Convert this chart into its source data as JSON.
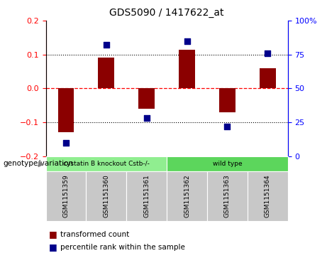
{
  "title": "GDS5090 / 1417622_at",
  "samples": [
    "GSM1151359",
    "GSM1151360",
    "GSM1151361",
    "GSM1151362",
    "GSM1151363",
    "GSM1151364"
  ],
  "transformed_counts": [
    -0.13,
    0.09,
    -0.06,
    0.115,
    -0.07,
    0.06
  ],
  "percentile_ranks": [
    10,
    82,
    28,
    85,
    22,
    76
  ],
  "groups": [
    "cystatin B knockout Cstb-/-",
    "cystatin B knockout Cstb-/-",
    "cystatin B knockout Cstb-/-",
    "wild type",
    "wild type",
    "wild type"
  ],
  "bar_color": "#8B0000",
  "dot_color": "#00008B",
  "ylim_left": [
    -0.2,
    0.2
  ],
  "ylim_right": [
    0,
    100
  ],
  "yticks_left": [
    -0.2,
    -0.1,
    0.0,
    0.1,
    0.2
  ],
  "yticks_right": [
    0,
    25,
    50,
    75,
    100
  ],
  "background_color": "#ffffff",
  "plot_bg": "#ffffff",
  "legend_items": [
    "transformed count",
    "percentile rank within the sample"
  ],
  "group_label": "genotype/variation",
  "sample_box_color": "#C8C8C8",
  "group_box_color_1": "#90EE90",
  "group_box_color_2": "#5CD65C"
}
